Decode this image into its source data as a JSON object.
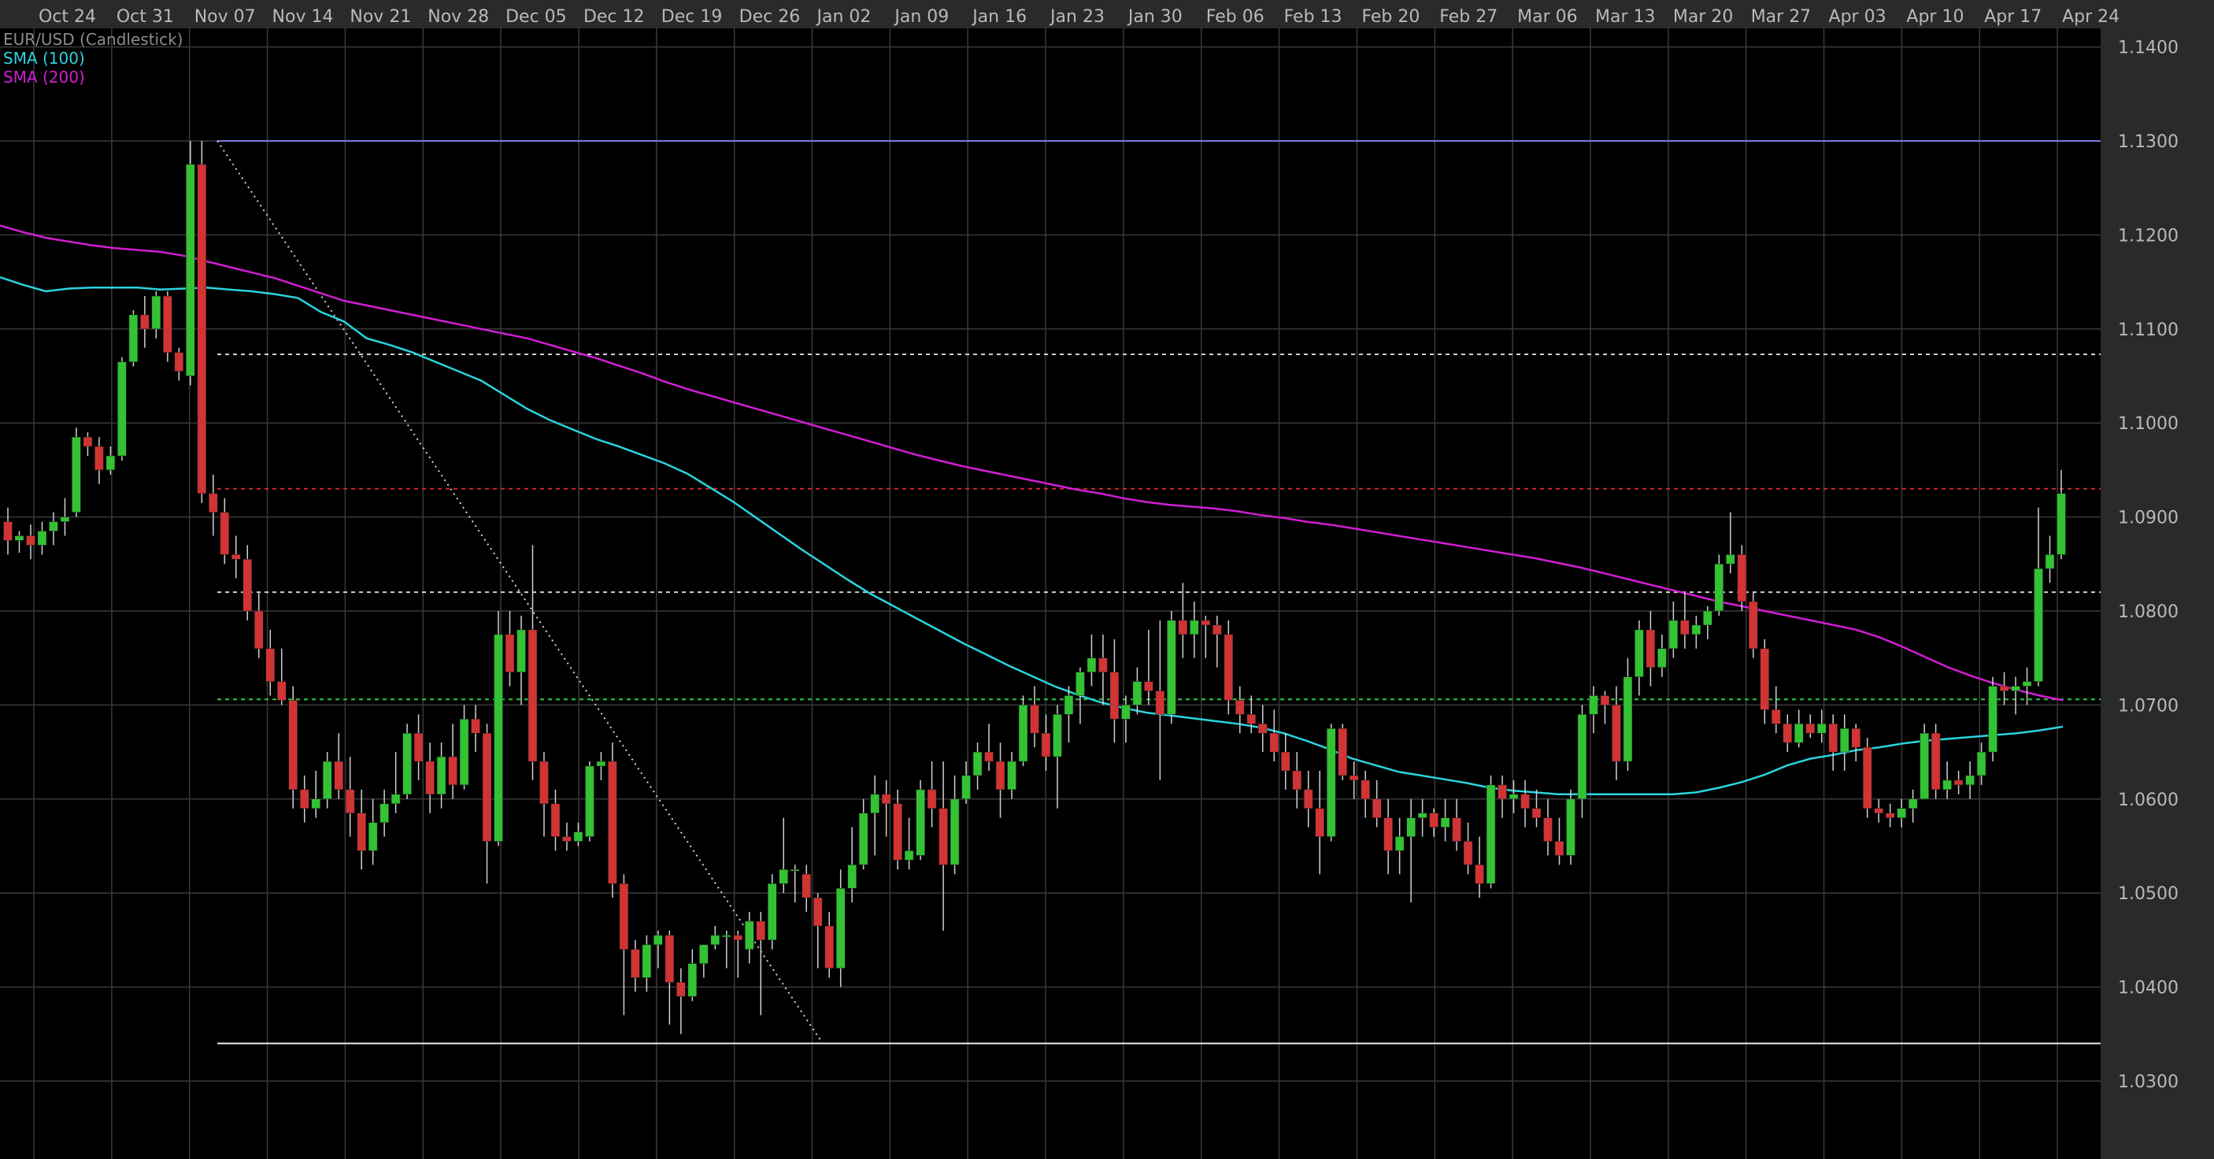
{
  "chart_data": {
    "type": "candlestick",
    "title": "EUR/USD (Candlestick)",
    "series_label": "EUR/USD",
    "chart_kind_label": "(Candlestick)",
    "indicators": [
      {
        "label": "SMA (100)",
        "color": "#2ad4e0",
        "values": [
          1.1155,
          1.1147,
          1.114,
          1.1143,
          1.1144,
          1.1144,
          1.1144,
          1.1142,
          1.1143,
          1.1144,
          1.1142,
          1.114,
          1.1137,
          1.1133,
          1.1118,
          1.1108,
          1.109,
          1.1083,
          1.1075,
          1.1065,
          1.1055,
          1.1045,
          1.103,
          1.1015,
          1.1003,
          1.0993,
          1.0983,
          1.0975,
          1.0966,
          1.0957,
          1.0946,
          1.0931,
          1.0916,
          1.0899,
          1.0882,
          1.0865,
          1.0849,
          1.0833,
          1.0818,
          1.0805,
          1.0792,
          1.0779,
          1.0766,
          1.0754,
          1.0742,
          1.0731,
          1.072,
          1.0711,
          1.0703,
          1.0697,
          1.0692,
          1.0689,
          1.0686,
          1.0683,
          1.068,
          1.0676,
          1.067,
          1.0662,
          1.0653,
          1.0643,
          1.0636,
          1.0629,
          1.0625,
          1.0621,
          1.0617,
          1.0612,
          1.0609,
          1.0607,
          1.0605,
          1.0605,
          1.0605,
          1.0605,
          1.0605,
          1.0605,
          1.0607,
          1.0612,
          1.0618,
          1.0626,
          1.0636,
          1.0643,
          1.0647,
          1.0652,
          1.0655,
          1.0659,
          1.0662,
          1.0664,
          1.0666,
          1.0668,
          1.067,
          1.0673,
          1.0677
        ]
      },
      {
        "label": "SMA (200)",
        "color": "#d21ed2",
        "values": [
          1.121,
          1.1203,
          1.1197,
          1.1193,
          1.1189,
          1.1186,
          1.1184,
          1.1182,
          1.1178,
          1.1172,
          1.1166,
          1.116,
          1.1154,
          1.1146,
          1.1138,
          1.113,
          1.1125,
          1.112,
          1.1115,
          1.111,
          1.1105,
          1.11,
          1.1095,
          1.109,
          1.1083,
          1.1076,
          1.1069,
          1.1061,
          1.1053,
          1.1044,
          1.1036,
          1.1029,
          1.1022,
          1.1015,
          1.1008,
          1.1001,
          1.0994,
          1.0987,
          1.098,
          1.0973,
          1.0966,
          1.096,
          1.0954,
          1.0949,
          1.0944,
          1.0939,
          1.0934,
          1.0929,
          1.0925,
          1.092,
          1.0916,
          1.0913,
          1.0911,
          1.0909,
          1.0906,
          1.0902,
          1.0899,
          1.0895,
          1.0892,
          1.0888,
          1.0884,
          1.088,
          1.0876,
          1.0872,
          1.0868,
          1.0864,
          1.086,
          1.0856,
          1.0851,
          1.0846,
          1.084,
          1.0834,
          1.0828,
          1.0822,
          1.0816,
          1.081,
          1.0805,
          1.08,
          1.0795,
          1.079,
          1.0785,
          1.078,
          1.0772,
          1.0762,
          1.0751,
          1.074,
          1.0731,
          1.0723,
          1.0716,
          1.071,
          1.0705
        ]
      }
    ],
    "x_tick_labels": [
      "Oct 24",
      "Oct 31",
      "Nov 07",
      "Nov 14",
      "Nov 21",
      "Nov 28",
      "Dec 05",
      "Dec 12",
      "Dec 19",
      "Dec 26",
      "Jan 02",
      "Jan 09",
      "Jan 16",
      "Jan 23",
      "Jan 30",
      "Feb 06",
      "Feb 13",
      "Feb 20",
      "Feb 27",
      "Mar 06",
      "Mar 13",
      "Mar 20",
      "Mar 27",
      "Apr 03",
      "Apr 10",
      "Apr 17",
      "Apr 24"
    ],
    "y_tick_labels": [
      "1.1400",
      "1.1300",
      "1.1200",
      "1.1100",
      "1.1000",
      "1.0900",
      "1.0800",
      "1.0700",
      "1.0600",
      "1.0500",
      "1.0400",
      "1.0300"
    ],
    "y_range": [
      1.025,
      1.1425
    ],
    "candles": [
      [
        1.0895,
        1.091,
        1.086,
        1.0875
      ],
      [
        1.0875,
        1.0885,
        1.0862,
        1.088
      ],
      [
        1.088,
        1.0892,
        1.0855,
        1.087
      ],
      [
        1.087,
        1.0895,
        1.086,
        1.0885
      ],
      [
        1.0885,
        1.0905,
        1.087,
        1.0895
      ],
      [
        1.0895,
        1.092,
        1.088,
        1.09
      ],
      [
        1.0905,
        1.0995,
        1.09,
        1.0985
      ],
      [
        1.0985,
        1.099,
        1.0965,
        1.0975
      ],
      [
        1.0975,
        1.0985,
        1.0935,
        1.095
      ],
      [
        1.095,
        1.0975,
        1.0945,
        1.0965
      ],
      [
        1.0965,
        1.107,
        1.096,
        1.1065
      ],
      [
        1.1065,
        1.112,
        1.106,
        1.1115
      ],
      [
        1.1115,
        1.1135,
        1.108,
        1.11
      ],
      [
        1.11,
        1.114,
        1.109,
        1.1135
      ],
      [
        1.1135,
        1.114,
        1.1065,
        1.1075
      ],
      [
        1.1075,
        1.108,
        1.1045,
        1.1055
      ],
      [
        1.105,
        1.13,
        1.104,
        1.1275
      ],
      [
        1.1275,
        1.13,
        1.0915,
        1.0925
      ],
      [
        1.0925,
        1.0945,
        1.088,
        1.0905
      ],
      [
        1.0905,
        1.092,
        1.085,
        1.086
      ],
      [
        1.086,
        1.088,
        1.0835,
        1.0855
      ],
      [
        1.0855,
        1.087,
        1.079,
        1.08
      ],
      [
        1.08,
        1.082,
        1.075,
        1.076
      ],
      [
        1.076,
        1.078,
        1.071,
        1.0725
      ],
      [
        1.0725,
        1.076,
        1.07,
        1.0705
      ],
      [
        1.0705,
        1.072,
        1.059,
        1.061
      ],
      [
        1.061,
        1.0625,
        1.0575,
        1.059
      ],
      [
        1.059,
        1.063,
        1.058,
        1.06
      ],
      [
        1.06,
        1.065,
        1.059,
        1.064
      ],
      [
        1.064,
        1.067,
        1.06,
        1.061
      ],
      [
        1.061,
        1.0645,
        1.056,
        1.0585
      ],
      [
        1.0585,
        1.061,
        1.0525,
        1.0545
      ],
      [
        1.0545,
        1.06,
        1.053,
        1.0575
      ],
      [
        1.0575,
        1.061,
        1.056,
        1.0595
      ],
      [
        1.0595,
        1.065,
        1.0585,
        1.0605
      ],
      [
        1.0605,
        1.068,
        1.06,
        1.067
      ],
      [
        1.067,
        1.069,
        1.062,
        1.064
      ],
      [
        1.064,
        1.066,
        1.0585,
        1.0605
      ],
      [
        1.0605,
        1.066,
        1.059,
        1.0645
      ],
      [
        1.0645,
        1.068,
        1.06,
        1.0615
      ],
      [
        1.0615,
        1.07,
        1.061,
        1.0685
      ],
      [
        1.0685,
        1.07,
        1.065,
        1.067
      ],
      [
        1.067,
        1.068,
        1.051,
        1.0555
      ],
      [
        1.0555,
        1.08,
        1.055,
        1.0775
      ],
      [
        1.0775,
        1.08,
        1.072,
        1.0735
      ],
      [
        1.0735,
        1.0795,
        1.07,
        1.078
      ],
      [
        1.078,
        1.087,
        1.062,
        1.064
      ],
      [
        1.064,
        1.065,
        1.056,
        1.0595
      ],
      [
        1.0595,
        1.061,
        1.0545,
        1.056
      ],
      [
        1.056,
        1.0575,
        1.0545,
        1.0555
      ],
      [
        1.0555,
        1.0575,
        1.055,
        1.0565
      ],
      [
        1.056,
        1.064,
        1.0555,
        1.0635
      ],
      [
        1.0635,
        1.065,
        1.062,
        1.064
      ],
      [
        1.064,
        1.066,
        1.0495,
        1.051
      ],
      [
        1.051,
        1.052,
        1.037,
        1.044
      ],
      [
        1.044,
        1.045,
        1.0395,
        1.041
      ],
      [
        1.041,
        1.0455,
        1.0395,
        1.0445
      ],
      [
        1.0445,
        1.046,
        1.042,
        1.0455
      ],
      [
        1.0455,
        1.046,
        1.036,
        1.0405
      ],
      [
        1.0405,
        1.042,
        1.035,
        1.039
      ],
      [
        1.039,
        1.044,
        1.0385,
        1.0425
      ],
      [
        1.0425,
        1.044,
        1.041,
        1.0445
      ],
      [
        1.0445,
        1.0465,
        1.044,
        1.0455
      ],
      [
        1.0455,
        1.046,
        1.042,
        1.0455
      ],
      [
        1.0455,
        1.046,
        1.041,
        1.045
      ],
      [
        1.044,
        1.048,
        1.0425,
        1.047
      ],
      [
        1.047,
        1.048,
        1.037,
        1.045
      ],
      [
        1.045,
        1.052,
        1.044,
        1.051
      ],
      [
        1.051,
        1.058,
        1.05,
        1.0525
      ],
      [
        1.0525,
        1.053,
        1.049,
        1.0525
      ],
      [
        1.052,
        1.053,
        1.048,
        1.0495
      ],
      [
        1.0495,
        1.05,
        1.042,
        1.0465
      ],
      [
        1.0465,
        1.048,
        1.041,
        1.042
      ],
      [
        1.042,
        1.0525,
        1.04,
        1.0505
      ],
      [
        1.0505,
        1.057,
        1.049,
        1.053
      ],
      [
        1.053,
        1.06,
        1.0525,
        1.0585
      ],
      [
        1.0585,
        1.0625,
        1.054,
        1.0605
      ],
      [
        1.0605,
        1.062,
        1.056,
        1.0595
      ],
      [
        1.0595,
        1.061,
        1.0525,
        1.0535
      ],
      [
        1.0535,
        1.058,
        1.0525,
        1.0545
      ],
      [
        1.054,
        1.062,
        1.0535,
        1.061
      ],
      [
        1.061,
        1.064,
        1.057,
        1.059
      ],
      [
        1.059,
        1.064,
        1.046,
        1.053
      ],
      [
        1.053,
        1.0625,
        1.052,
        1.06
      ],
      [
        1.06,
        1.064,
        1.0595,
        1.0625
      ],
      [
        1.0625,
        1.066,
        1.061,
        1.065
      ],
      [
        1.065,
        1.068,
        1.063,
        1.064
      ],
      [
        1.064,
        1.066,
        1.058,
        1.061
      ],
      [
        1.061,
        1.065,
        1.06,
        1.064
      ],
      [
        1.064,
        1.071,
        1.0635,
        1.07
      ],
      [
        1.07,
        1.072,
        1.0655,
        1.067
      ],
      [
        1.067,
        1.069,
        1.063,
        1.0645
      ],
      [
        1.0645,
        1.07,
        1.059,
        1.069
      ],
      [
        1.069,
        1.072,
        1.066,
        1.071
      ],
      [
        1.071,
        1.074,
        1.068,
        1.0735
      ],
      [
        1.0735,
        1.0775,
        1.072,
        1.075
      ],
      [
        1.075,
        1.0775,
        1.07,
        1.0735
      ],
      [
        1.0735,
        1.077,
        1.066,
        1.0685
      ],
      [
        1.0685,
        1.071,
        1.066,
        1.07
      ],
      [
        1.07,
        1.074,
        1.069,
        1.0725
      ],
      [
        1.0725,
        1.078,
        1.07,
        1.0715
      ],
      [
        1.0715,
        1.079,
        1.062,
        1.069
      ],
      [
        1.069,
        1.08,
        1.068,
        1.079
      ],
      [
        1.079,
        1.083,
        1.075,
        1.0775
      ],
      [
        1.0775,
        1.081,
        1.075,
        1.079
      ],
      [
        1.079,
        1.0795,
        1.075,
        1.0785
      ],
      [
        1.0785,
        1.0795,
        1.074,
        1.0775
      ],
      [
        1.0775,
        1.079,
        1.069,
        1.0705
      ],
      [
        1.0705,
        1.072,
        1.067,
        1.069
      ],
      [
        1.069,
        1.071,
        1.067,
        1.068
      ],
      [
        1.068,
        1.07,
        1.065,
        1.067
      ],
      [
        1.067,
        1.0695,
        1.064,
        1.065
      ],
      [
        1.065,
        1.067,
        1.061,
        1.063
      ],
      [
        1.063,
        1.065,
        1.059,
        1.061
      ],
      [
        1.061,
        1.063,
        1.057,
        1.059
      ],
      [
        1.059,
        1.063,
        1.052,
        1.056
      ],
      [
        1.056,
        1.068,
        1.0555,
        1.0675
      ],
      [
        1.0675,
        1.068,
        1.062,
        1.0625
      ],
      [
        1.0625,
        1.064,
        1.06,
        1.062
      ],
      [
        1.062,
        1.063,
        1.058,
        1.06
      ],
      [
        1.06,
        1.062,
        1.057,
        1.058
      ],
      [
        1.058,
        1.06,
        1.052,
        1.0545
      ],
      [
        1.0545,
        1.058,
        1.052,
        1.056
      ],
      [
        1.056,
        1.06,
        1.049,
        1.058
      ],
      [
        1.058,
        1.06,
        1.056,
        1.0585
      ],
      [
        1.0585,
        1.059,
        1.056,
        1.057
      ],
      [
        1.057,
        1.06,
        1.0555,
        1.058
      ],
      [
        1.058,
        1.06,
        1.0545,
        1.0555
      ],
      [
        1.0555,
        1.0575,
        1.052,
        1.053
      ],
      [
        1.053,
        1.056,
        1.0495,
        1.051
      ],
      [
        1.051,
        1.0625,
        1.0505,
        1.0615
      ],
      [
        1.0615,
        1.0625,
        1.058,
        1.06
      ],
      [
        1.06,
        1.062,
        1.0585,
        1.0605
      ],
      [
        1.0605,
        1.062,
        1.057,
        1.059
      ],
      [
        1.059,
        1.061,
        1.057,
        1.058
      ],
      [
        1.058,
        1.06,
        1.054,
        1.0555
      ],
      [
        1.0555,
        1.058,
        1.053,
        1.054
      ],
      [
        1.054,
        1.061,
        1.053,
        1.06
      ],
      [
        1.06,
        1.07,
        1.058,
        1.069
      ],
      [
        1.069,
        1.072,
        1.067,
        1.071
      ],
      [
        1.071,
        1.0715,
        1.068,
        1.07
      ],
      [
        1.07,
        1.072,
        1.062,
        1.064
      ],
      [
        1.064,
        1.075,
        1.063,
        1.073
      ],
      [
        1.073,
        1.079,
        1.071,
        1.078
      ],
      [
        1.078,
        1.08,
        1.072,
        1.074
      ],
      [
        1.074,
        1.0775,
        1.073,
        1.076
      ],
      [
        1.076,
        1.081,
        1.075,
        1.079
      ],
      [
        1.079,
        1.082,
        1.076,
        1.0775
      ],
      [
        1.0775,
        1.0795,
        1.076,
        1.0785
      ],
      [
        1.0785,
        1.0805,
        1.077,
        1.08
      ],
      [
        1.08,
        1.086,
        1.0795,
        1.085
      ],
      [
        1.085,
        1.0905,
        1.084,
        1.086
      ],
      [
        1.086,
        1.087,
        1.08,
        1.081
      ],
      [
        1.081,
        1.082,
        1.075,
        1.076
      ],
      [
        1.076,
        1.077,
        1.068,
        1.0695
      ],
      [
        1.0695,
        1.072,
        1.067,
        1.068
      ],
      [
        1.068,
        1.069,
        1.065,
        1.066
      ],
      [
        1.066,
        1.0695,
        1.0655,
        1.068
      ],
      [
        1.068,
        1.069,
        1.0665,
        1.067
      ],
      [
        1.067,
        1.0695,
        1.066,
        1.068
      ],
      [
        1.068,
        1.069,
        1.063,
        1.065
      ],
      [
        1.065,
        1.069,
        1.063,
        1.0675
      ],
      [
        1.0675,
        1.068,
        1.064,
        1.0655
      ],
      [
        1.0655,
        1.0665,
        1.058,
        1.059
      ],
      [
        1.059,
        1.06,
        1.0575,
        1.0585
      ],
      [
        1.0585,
        1.0595,
        1.057,
        1.058
      ],
      [
        1.058,
        1.06,
        1.057,
        1.059
      ],
      [
        1.059,
        1.061,
        1.0575,
        1.06
      ],
      [
        1.06,
        1.068,
        1.06,
        1.067
      ],
      [
        1.067,
        1.068,
        1.06,
        1.061
      ],
      [
        1.061,
        1.064,
        1.06,
        1.062
      ],
      [
        1.062,
        1.063,
        1.0605,
        1.0615
      ],
      [
        1.0615,
        1.064,
        1.06,
        1.0625
      ],
      [
        1.0625,
        1.066,
        1.0615,
        1.065
      ],
      [
        1.065,
        1.073,
        1.064,
        1.072
      ],
      [
        1.072,
        1.0735,
        1.07,
        1.0715
      ],
      [
        1.0715,
        1.073,
        1.069,
        1.072
      ],
      [
        1.072,
        1.074,
        1.07,
        1.0725
      ],
      [
        1.0725,
        1.091,
        1.072,
        1.0845
      ],
      [
        1.0845,
        1.088,
        1.083,
        1.086
      ],
      [
        1.086,
        1.095,
        1.0855,
        1.0925
      ]
    ],
    "annotation_lines": [
      {
        "label": "resistance-line-1.1300",
        "value": 1.13,
        "color": "#7b7be0",
        "dash": "none"
      },
      {
        "label": "level-line-1.1073",
        "value": 1.1073,
        "color": "#cfcfcf",
        "dash": "5,5"
      },
      {
        "label": "level-line-1.0930",
        "value": 1.093,
        "color": "#d02a2a",
        "dash": "5,5"
      },
      {
        "label": "level-line-1.0820",
        "value": 1.082,
        "color": "#cfcfcf",
        "dash": "5,5"
      },
      {
        "label": "level-line-1.0706",
        "value": 1.0706,
        "color": "#2ecc40",
        "dash": "5,5"
      },
      {
        "label": "support-line-1.0340",
        "value": 1.034,
        "color": "#e8e8e8",
        "dash": "none"
      }
    ],
    "trendline": {
      "from": 1.13,
      "to": 1.034
    },
    "colors": {
      "up": "#33c233",
      "down": "#d03434",
      "grid": "#3a3a3a",
      "text": "#b9b9b9",
      "axis_bg": "#2a2a2a"
    }
  }
}
